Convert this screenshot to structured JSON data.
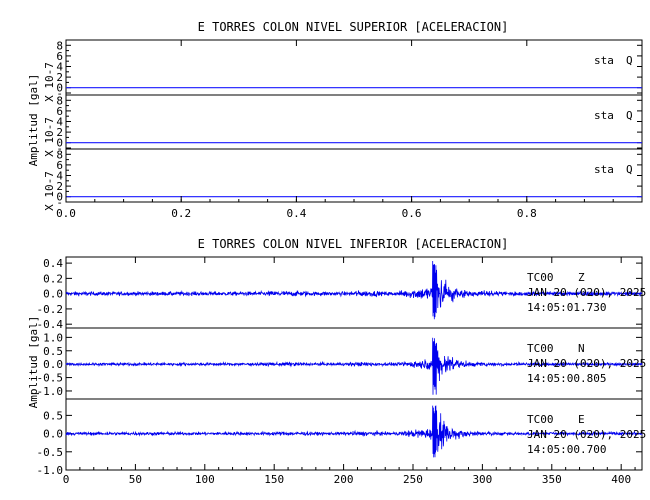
{
  "chart_data": [
    {
      "type": "line",
      "title": "E TORRES COLON NIVEL SUPERIOR [ACELERACION]",
      "ylabel": "Amplitud [gal]",
      "scale_label": "X 10-7",
      "xlim": [
        0,
        1
      ],
      "x_ticks": [
        "0.0",
        "0.2",
        "0.4",
        "0.6",
        "0.8"
      ],
      "x_tick_values": [
        0.0,
        0.2,
        0.4,
        0.6,
        0.8
      ],
      "y_ticks": [
        "-",
        "0",
        "2",
        "4",
        "6",
        "8"
      ],
      "y_tick_values": [
        -1,
        0,
        2,
        4,
        6,
        8
      ],
      "ylim": [
        -1,
        9
      ],
      "grid": false,
      "series_color": "#1a1aff",
      "series": [
        {
          "label": "sta",
          "channel": "Q",
          "values": [
            0,
            0
          ]
        },
        {
          "label": "sta",
          "channel": "Q",
          "values": [
            0,
            0
          ]
        },
        {
          "label": "sta",
          "channel": "Q",
          "values": [
            0,
            0
          ]
        }
      ]
    },
    {
      "type": "line",
      "title": "E TORRES COLON NIVEL INFERIOR [ACELERACION]",
      "ylabel": "Amplitud [gal]",
      "xlim": [
        0,
        415
      ],
      "x_ticks": [
        "0",
        "50",
        "100",
        "150",
        "200",
        "250",
        "300",
        "350",
        "400"
      ],
      "x_tick_values": [
        0,
        50,
        100,
        150,
        200,
        250,
        300,
        350,
        400
      ],
      "event_time": 265,
      "grid": false,
      "series_color": "#0000ee",
      "series": [
        {
          "station": "TC00",
          "channel": "Z",
          "date": "JAN 20 (020), 2025",
          "time": "14:05:01.730",
          "ylim": [
            -0.45,
            0.48
          ],
          "y_ticks": [
            "0.4",
            "0.2",
            "0.0",
            "-0.2",
            "-0.4"
          ],
          "y_tick_values": [
            0.4,
            0.2,
            0.0,
            -0.2,
            -0.4
          ],
          "noise_amplitude": 0.025,
          "peak": 0.44,
          "trough": -0.38
        },
        {
          "station": "TC00",
          "channel": "N",
          "date": "JAN 20 (020), 2025",
          "time": "14:05:00.805",
          "ylim": [
            -1.3,
            1.35
          ],
          "y_ticks": [
            "1.0",
            "0.5",
            "0.0",
            "-0.5",
            "-1.0"
          ],
          "y_tick_values": [
            1.0,
            0.5,
            0.0,
            -0.5,
            -1.0
          ],
          "noise_amplitude": 0.05,
          "peak": 1.0,
          "trough": -1.2
        },
        {
          "station": "TC00",
          "channel": "E",
          "date": "JAN 20 (020), 2025",
          "time": "14:05:00.700",
          "ylim": [
            -1.0,
            0.95
          ],
          "y_ticks": [
            "0.5",
            "0.0",
            "-0.5",
            "-1.0"
          ],
          "y_tick_values": [
            0.5,
            0.0,
            -0.5,
            -1.0
          ],
          "noise_amplitude": 0.04,
          "peak": 0.92,
          "trough": -0.75
        }
      ]
    }
  ]
}
